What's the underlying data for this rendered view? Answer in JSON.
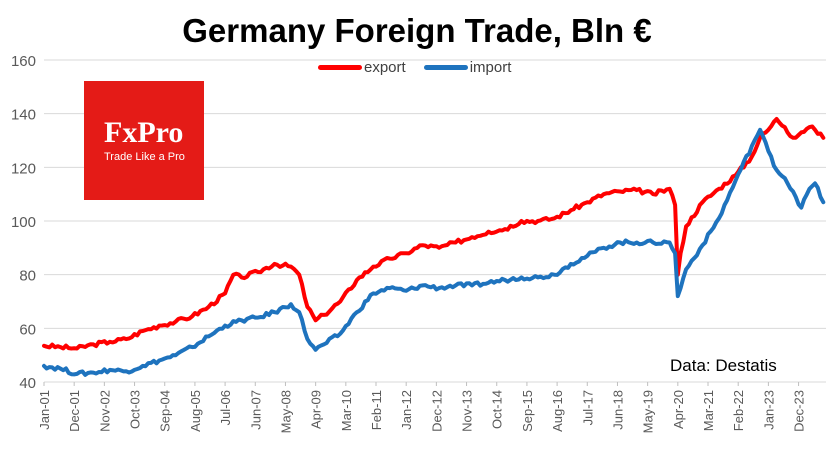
{
  "chart_data": {
    "type": "line",
    "title": "Germany Foreign Trade, Bln €",
    "xlabel": "",
    "ylabel": "",
    "ylim": [
      40,
      160
    ],
    "yticks": [
      40,
      60,
      80,
      100,
      120,
      140,
      160
    ],
    "grid": "horizontal",
    "legend": "top-center",
    "x_tick_labels": [
      "Jan-01",
      "Dec-01",
      "Nov-02",
      "Oct-03",
      "Sep-04",
      "Aug-05",
      "Jul-06",
      "Jun-07",
      "May-08",
      "Apr-09",
      "Mar-10",
      "Feb-11",
      "Jan-12",
      "Dec-12",
      "Nov-13",
      "Oct-14",
      "Sep-15",
      "Aug-16",
      "Jul-17",
      "Jun-18",
      "May-19",
      "Apr-20",
      "Mar-21",
      "Feb-22",
      "Jan-23",
      "Dec-23"
    ],
    "series": [
      {
        "name": "export",
        "color": "#ff0000",
        "points": [
          [
            "2001-01",
            53.5
          ],
          [
            "2001-07",
            53
          ],
          [
            "2002-01",
            52.5
          ],
          [
            "2002-07",
            54
          ],
          [
            "2003-01",
            55
          ],
          [
            "2003-07",
            56
          ],
          [
            "2004-01",
            59
          ],
          [
            "2004-07",
            61
          ],
          [
            "2005-01",
            62.5
          ],
          [
            "2005-07",
            64.5
          ],
          [
            "2006-01",
            68
          ],
          [
            "2006-07",
            73
          ],
          [
            "2006-10",
            80
          ],
          [
            "2007-01",
            79
          ],
          [
            "2007-07",
            81
          ],
          [
            "2008-01",
            84
          ],
          [
            "2008-07",
            83
          ],
          [
            "2008-10",
            80
          ],
          [
            "2009-01",
            68
          ],
          [
            "2009-04",
            63
          ],
          [
            "2009-07",
            65
          ],
          [
            "2010-01",
            70
          ],
          [
            "2010-07",
            78
          ],
          [
            "2011-01",
            83
          ],
          [
            "2011-07",
            86
          ],
          [
            "2012-01",
            88
          ],
          [
            "2012-07",
            91
          ],
          [
            "2013-01",
            90
          ],
          [
            "2013-07",
            92
          ],
          [
            "2014-01",
            94
          ],
          [
            "2014-07",
            96
          ],
          [
            "2015-01",
            97
          ],
          [
            "2015-07",
            100
          ],
          [
            "2016-01",
            100
          ],
          [
            "2016-07",
            101
          ],
          [
            "2017-01",
            104
          ],
          [
            "2017-07",
            107
          ],
          [
            "2018-01",
            110
          ],
          [
            "2018-07",
            111
          ],
          [
            "2019-01",
            111.5
          ],
          [
            "2019-07",
            110
          ],
          [
            "2020-01",
            112
          ],
          [
            "2020-03",
            106
          ],
          [
            "2020-04",
            80
          ],
          [
            "2020-05",
            88
          ],
          [
            "2020-07",
            98
          ],
          [
            "2021-01",
            107
          ],
          [
            "2021-07",
            112
          ],
          [
            "2022-01",
            117
          ],
          [
            "2022-07",
            124
          ],
          [
            "2022-10",
            131
          ],
          [
            "2023-01",
            134
          ],
          [
            "2023-04",
            138
          ],
          [
            "2023-07",
            135
          ],
          [
            "2023-10",
            131
          ],
          [
            "2024-01",
            133
          ],
          [
            "2024-04",
            135
          ],
          [
            "2024-06",
            134
          ],
          [
            "2024-09",
            131
          ]
        ]
      },
      {
        "name": "import",
        "color": "#1e73be",
        "points": [
          [
            "2001-01",
            46
          ],
          [
            "2001-07",
            45
          ],
          [
            "2002-01",
            43
          ],
          [
            "2002-07",
            43.5
          ],
          [
            "2003-01",
            44.5
          ],
          [
            "2003-07",
            44
          ],
          [
            "2004-01",
            46
          ],
          [
            "2004-07",
            48
          ],
          [
            "2005-01",
            50
          ],
          [
            "2005-07",
            53
          ],
          [
            "2006-01",
            57
          ],
          [
            "2006-07",
            61
          ],
          [
            "2007-01",
            63
          ],
          [
            "2007-07",
            64
          ],
          [
            "2008-01",
            66
          ],
          [
            "2008-07",
            69
          ],
          [
            "2008-10",
            66
          ],
          [
            "2009-01",
            56
          ],
          [
            "2009-04",
            52
          ],
          [
            "2009-07",
            54
          ],
          [
            "2010-01",
            58
          ],
          [
            "2010-07",
            66
          ],
          [
            "2011-01",
            73
          ],
          [
            "2011-07",
            75
          ],
          [
            "2012-01",
            74
          ],
          [
            "2012-07",
            76
          ],
          [
            "2013-01",
            75
          ],
          [
            "2013-07",
            76
          ],
          [
            "2014-01",
            76
          ],
          [
            "2014-07",
            77
          ],
          [
            "2015-01",
            78
          ],
          [
            "2015-07",
            79
          ],
          [
            "2016-01",
            79
          ],
          [
            "2016-07",
            80
          ],
          [
            "2017-01",
            84
          ],
          [
            "2017-07",
            87
          ],
          [
            "2018-01",
            90
          ],
          [
            "2018-07",
            92
          ],
          [
            "2019-01",
            92
          ],
          [
            "2019-07",
            92
          ],
          [
            "2020-01",
            92
          ],
          [
            "2020-03",
            88
          ],
          [
            "2020-04",
            72
          ],
          [
            "2020-05",
            75
          ],
          [
            "2020-07",
            82
          ],
          [
            "2021-01",
            91
          ],
          [
            "2021-07",
            101
          ],
          [
            "2022-01",
            115
          ],
          [
            "2022-07",
            128
          ],
          [
            "2022-10",
            134
          ],
          [
            "2023-01",
            126
          ],
          [
            "2023-04",
            119
          ],
          [
            "2023-07",
            116
          ],
          [
            "2023-10",
            111
          ],
          [
            "2024-01",
            105
          ],
          [
            "2024-04",
            112
          ],
          [
            "2024-06",
            114
          ],
          [
            "2024-09",
            107
          ]
        ]
      }
    ]
  },
  "logo": {
    "brand": "FxPro",
    "tagline": "Trade Like a Pro"
  },
  "source": "Data: Destatis"
}
